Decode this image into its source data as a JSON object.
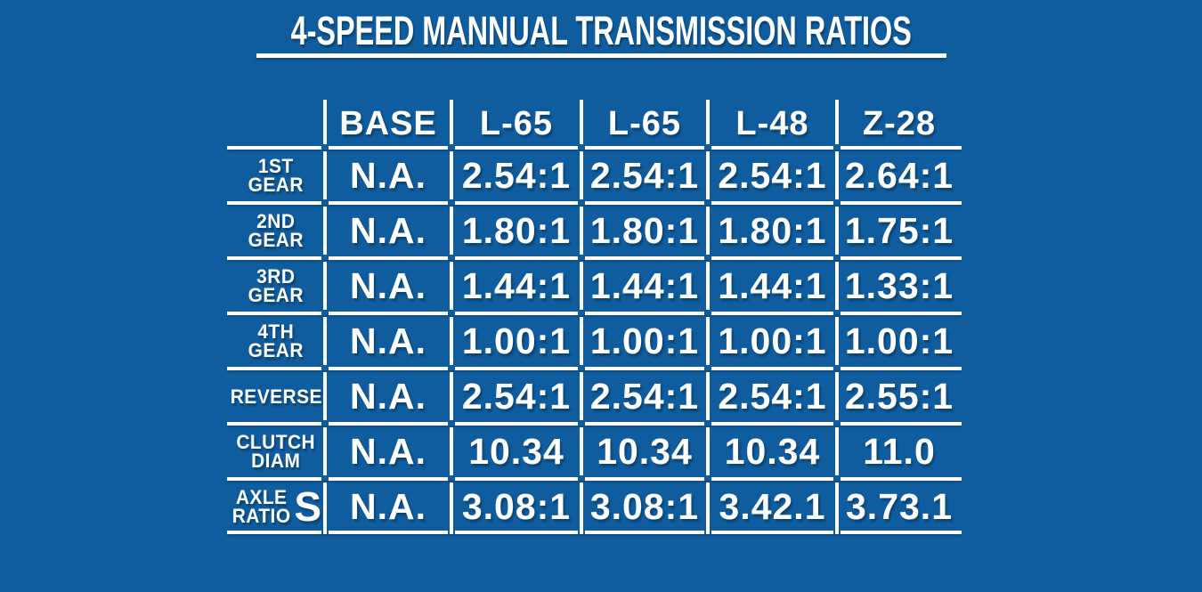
{
  "page": {
    "background_color": "#0F5D9E",
    "text_color": "#FFFFFF",
    "line_color": "#FFFFFF"
  },
  "header": {
    "title": "4-SPEED MANNUAL TRANSMISSION RATIOS"
  },
  "table": {
    "column_headers": [
      "",
      "BASE",
      "L-65",
      "L-65",
      "L-48",
      "Z-28"
    ],
    "rows": [
      {
        "label_line1": "1ST",
        "label_line2": "GEAR",
        "label_suffix": "",
        "values": [
          "N.A.",
          "2.54:1",
          "2.54:1",
          "2.54:1",
          "2.64:1"
        ]
      },
      {
        "label_line1": "2ND",
        "label_line2": "GEAR",
        "label_suffix": "",
        "values": [
          "N.A.",
          "1.80:1",
          "1.80:1",
          "1.80:1",
          "1.75:1"
        ]
      },
      {
        "label_line1": "3RD",
        "label_line2": "GEAR",
        "label_suffix": "",
        "values": [
          "N.A.",
          "1.44:1",
          "1.44:1",
          "1.44:1",
          "1.33:1"
        ]
      },
      {
        "label_line1": "4TH",
        "label_line2": "GEAR",
        "label_suffix": "",
        "values": [
          "N.A.",
          "1.00:1",
          "1.00:1",
          "1.00:1",
          "1.00:1"
        ]
      },
      {
        "label_line1": "REVERSE",
        "label_line2": "",
        "label_suffix": "",
        "values": [
          "N.A.",
          "2.54:1",
          "2.54:1",
          "2.54:1",
          "2.55:1"
        ]
      },
      {
        "label_line1": "CLUTCH",
        "label_line2": "DIAM",
        "label_suffix": "",
        "values": [
          "N.A.",
          "10.34",
          "10.34",
          "10.34",
          "11.0"
        ]
      },
      {
        "label_line1": "AXLE",
        "label_line2": "RATIO",
        "label_suffix": "S",
        "values": [
          "N.A.",
          "3.08:1",
          "3.08:1",
          "3.42.1",
          "3.73.1"
        ]
      }
    ]
  },
  "chart_data": {
    "type": "table",
    "title": "4-SPEED MANNUAL TRANSMISSION RATIOS",
    "columns": [
      "BASE",
      "L-65",
      "L-65",
      "L-48",
      "Z-28"
    ],
    "row_labels": [
      "1ST GEAR",
      "2ND GEAR",
      "3RD GEAR",
      "4TH GEAR",
      "REVERSE",
      "CLUTCH DIAM",
      "AXLE RATIOS"
    ],
    "rows": [
      [
        "N.A.",
        "2.54:1",
        "2.54:1",
        "2.54:1",
        "2.64:1"
      ],
      [
        "N.A.",
        "1.80:1",
        "1.80:1",
        "1.80:1",
        "1.75:1"
      ],
      [
        "N.A.",
        "1.44:1",
        "1.44:1",
        "1.44:1",
        "1.33:1"
      ],
      [
        "N.A.",
        "1.00:1",
        "1.00:1",
        "1.00:1",
        "1.00:1"
      ],
      [
        "N.A.",
        "2.54:1",
        "2.54:1",
        "2.54:1",
        "2.55:1"
      ],
      [
        "N.A.",
        "10.34",
        "10.34",
        "10.34",
        "11.0"
      ],
      [
        "N.A.",
        "3.08:1",
        "3.08:1",
        "3.42.1",
        "3.73.1"
      ]
    ]
  }
}
